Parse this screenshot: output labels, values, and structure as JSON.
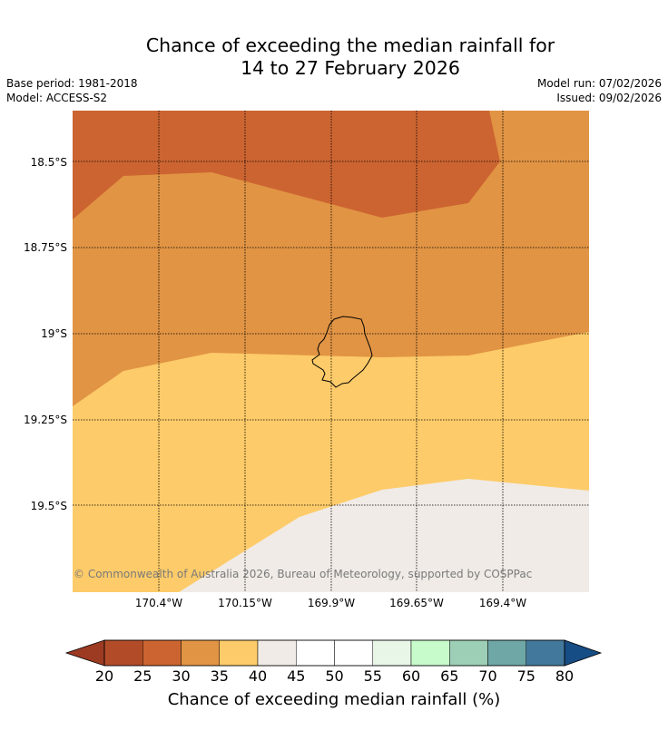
{
  "title": {
    "line1": "Chance of exceeding the median rainfall for",
    "line2": "14 to 27 February 2026"
  },
  "meta": {
    "base_period": "Base period: 1981-2018",
    "model": "Model: ACCESS-S2",
    "model_run": "Model run: 07/02/2026",
    "issued": "Issued: 09/02/2026"
  },
  "map": {
    "latitude_labels": [
      "18.5°S",
      "18.75°S",
      "19°S",
      "19.25°S",
      "19.5°S"
    ],
    "longitude_labels": [
      "170.4°W",
      "170.15°W",
      "169.9°W",
      "169.65°W",
      "169.4°W"
    ],
    "credit": "© Commonwealth of Australia 2026, Bureau of Meteorology, supported by COSPPac",
    "region_colors": {
      "25-30": "#cc6431",
      "30-35": "#e19444",
      "35-40": "#fdcb69",
      "40-45": "#f0ebe6"
    }
  },
  "colorbar": {
    "label": "Chance of exceeding median rainfall (%)",
    "ticks": [
      "20",
      "25",
      "30",
      "35",
      "40",
      "45",
      "50",
      "55",
      "60",
      "65",
      "70",
      "75",
      "80"
    ],
    "low_extend_color": "#9c3a22",
    "high_extend_color": "#174d85",
    "colors": [
      "#b24c28",
      "#cc6431",
      "#e19444",
      "#fdcb69",
      "#f0ebe6",
      "#ffffff",
      "#ffffff",
      "#e8f6e8",
      "#c8fbcb",
      "#9ccfb5",
      "#6fa6a6",
      "#42789b"
    ]
  }
}
